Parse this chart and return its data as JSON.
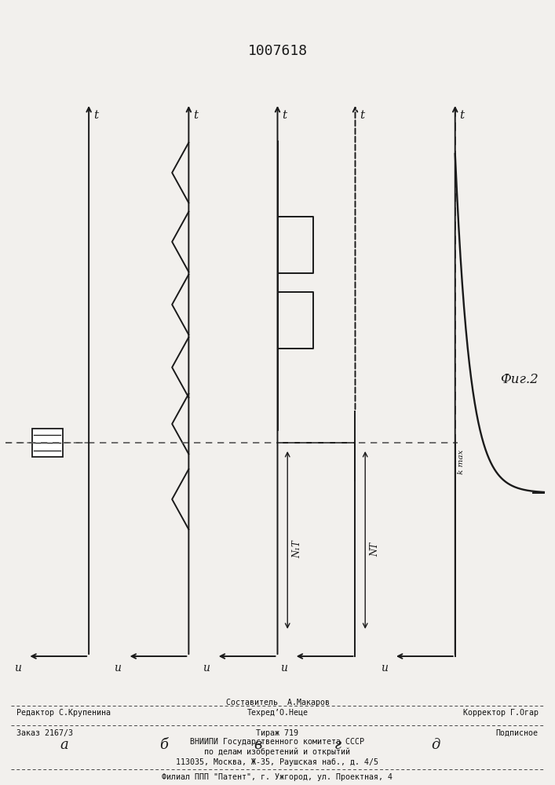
{
  "title": "1007618",
  "fig_label": "Фиг.2",
  "background_color": "#f2f0ed",
  "line_color": "#1a1a1a",
  "dashed_color": "#555555",
  "panel_labels": [
    "а",
    "б",
    "в",
    "г",
    "д"
  ],
  "footer": {
    "line1_center": "Составитель  А.Макаров",
    "line2_left": "Редактор С.Крупенина",
    "line2_center": "Техред’О.Неце",
    "line2_right": "Корректор Г.Огар",
    "line3_left": "Заказ 2167/3",
    "line3_center": "Тираж 719",
    "line3_right": "Подписное",
    "line4": "ВНИИПИ Государственного комитета СССР",
    "line5": "по делам изобретений и открытий",
    "line6": "113035, Москва, Ж-35, Раушская наб., д. 4/5",
    "line7": "Филиал ППП \"Патент\", г. Ужгород, ул. Проектная, 4"
  }
}
